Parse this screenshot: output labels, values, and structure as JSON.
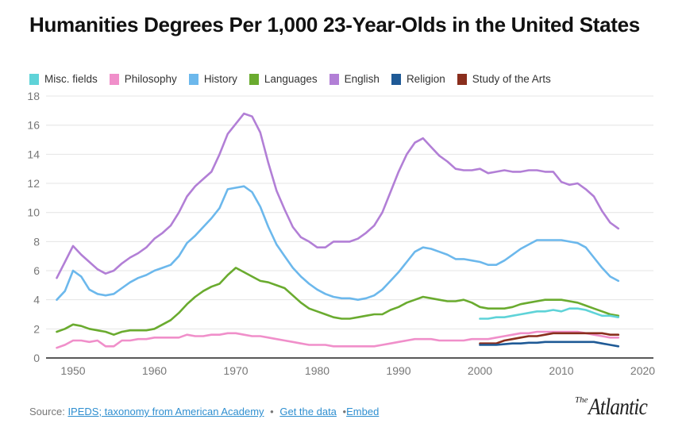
{
  "title": "Humanities Degrees Per 1,000 23-Year-Olds in the United States",
  "footer": {
    "source_label": "Source:",
    "source_link": "IPEDS; taxonomy from American Academy",
    "sep1": "•",
    "get_data": "Get the data",
    "sep2": "•",
    "embed": "Embed"
  },
  "logo": {
    "the": "The",
    "name": "Atlantic"
  },
  "chart_data": {
    "type": "line",
    "title": "Humanities Degrees Per 1,000 23-Year-Olds in the United States",
    "xlabel": "",
    "ylabel": "",
    "xlim": [
      1947,
      2020
    ],
    "ylim": [
      0,
      18
    ],
    "xticks": [
      1950,
      1960,
      1970,
      1980,
      1990,
      2000,
      2010,
      2020
    ],
    "yticks": [
      0,
      2,
      4,
      6,
      8,
      10,
      12,
      14,
      16,
      18
    ],
    "grid": true,
    "legend_position": "top",
    "series": [
      {
        "name": "Misc. fields",
        "color": "#5fd3d8",
        "start_year": 2000,
        "values": [
          2.7,
          2.7,
          2.8,
          2.8,
          2.9,
          3.0,
          3.1,
          3.2,
          3.2,
          3.3,
          3.2,
          3.4,
          3.4,
          3.3,
          3.1,
          2.9,
          2.9,
          2.8
        ]
      },
      {
        "name": "Philosophy",
        "color": "#f08fca",
        "start_year": 1948,
        "values": [
          0.7,
          0.9,
          1.2,
          1.2,
          1.1,
          1.2,
          0.8,
          0.8,
          1.2,
          1.2,
          1.3,
          1.3,
          1.4,
          1.4,
          1.4,
          1.4,
          1.6,
          1.5,
          1.5,
          1.6,
          1.6,
          1.7,
          1.7,
          1.6,
          1.5,
          1.5,
          1.4,
          1.3,
          1.2,
          1.1,
          1.0,
          0.9,
          0.9,
          0.9,
          0.8,
          0.8,
          0.8,
          0.8,
          0.8,
          0.8,
          0.9,
          1.0,
          1.1,
          1.2,
          1.3,
          1.3,
          1.3,
          1.2,
          1.2,
          1.2,
          1.2,
          1.3,
          1.3,
          1.3,
          1.4,
          1.5,
          1.6,
          1.7,
          1.7,
          1.8,
          1.8,
          1.8,
          1.8,
          1.8,
          1.8,
          1.7,
          1.6,
          1.5,
          1.4,
          1.4
        ]
      },
      {
        "name": "History",
        "color": "#6cb8ec",
        "start_year": 1948,
        "values": [
          4.0,
          4.6,
          6.0,
          5.6,
          4.7,
          4.4,
          4.3,
          4.4,
          4.8,
          5.2,
          5.5,
          5.7,
          6.0,
          6.2,
          6.4,
          7.0,
          7.9,
          8.4,
          9.0,
          9.6,
          10.3,
          11.6,
          11.7,
          11.8,
          11.4,
          10.4,
          9.0,
          7.8,
          7.0,
          6.2,
          5.6,
          5.1,
          4.7,
          4.4,
          4.2,
          4.1,
          4.1,
          4.0,
          4.1,
          4.3,
          4.7,
          5.3,
          5.9,
          6.6,
          7.3,
          7.6,
          7.5,
          7.3,
          7.1,
          6.8,
          6.8,
          6.7,
          6.6,
          6.4,
          6.4,
          6.7,
          7.1,
          7.5,
          7.8,
          8.1,
          8.1,
          8.1,
          8.1,
          8.0,
          7.9,
          7.6,
          6.9,
          6.2,
          5.6,
          5.3
        ]
      },
      {
        "name": "Languages",
        "color": "#6aab2f",
        "start_year": 1948,
        "values": [
          1.8,
          2.0,
          2.3,
          2.2,
          2.0,
          1.9,
          1.8,
          1.6,
          1.8,
          1.9,
          1.9,
          1.9,
          2.0,
          2.3,
          2.6,
          3.1,
          3.7,
          4.2,
          4.6,
          4.9,
          5.1,
          5.7,
          6.2,
          5.9,
          5.6,
          5.3,
          5.2,
          5.0,
          4.8,
          4.3,
          3.8,
          3.4,
          3.2,
          3.0,
          2.8,
          2.7,
          2.7,
          2.8,
          2.9,
          3.0,
          3.0,
          3.3,
          3.5,
          3.8,
          4.0,
          4.2,
          4.1,
          4.0,
          3.9,
          3.9,
          4.0,
          3.8,
          3.5,
          3.4,
          3.4,
          3.4,
          3.5,
          3.7,
          3.8,
          3.9,
          4.0,
          4.0,
          4.0,
          3.9,
          3.8,
          3.6,
          3.4,
          3.2,
          3.0,
          2.9
        ]
      },
      {
        "name": "English",
        "color": "#b27fd6",
        "start_year": 1948,
        "values": [
          5.5,
          6.6,
          7.7,
          7.1,
          6.6,
          6.1,
          5.8,
          6.0,
          6.5,
          6.9,
          7.2,
          7.6,
          8.2,
          8.6,
          9.1,
          10.0,
          11.1,
          11.8,
          12.3,
          12.8,
          14.0,
          15.4,
          16.1,
          16.8,
          16.6,
          15.5,
          13.4,
          11.5,
          10.2,
          9.0,
          8.3,
          8.0,
          7.6,
          7.6,
          8.0,
          8.0,
          8.0,
          8.2,
          8.6,
          9.1,
          10.0,
          11.4,
          12.8,
          14.0,
          14.8,
          15.1,
          14.5,
          13.9,
          13.5,
          13.0,
          12.9,
          12.9,
          13.0,
          12.7,
          12.8,
          12.9,
          12.8,
          12.8,
          12.9,
          12.9,
          12.8,
          12.8,
          12.1,
          11.9,
          12.0,
          11.6,
          11.1,
          10.1,
          9.3,
          8.9
        ]
      },
      {
        "name": "Religion",
        "color": "#1f5a96",
        "start_year": 2000,
        "values": [
          0.9,
          0.9,
          0.9,
          0.95,
          1.0,
          1.0,
          1.05,
          1.05,
          1.1,
          1.1,
          1.1,
          1.1,
          1.1,
          1.1,
          1.1,
          1.0,
          0.9,
          0.8
        ]
      },
      {
        "name": "Study of the Arts",
        "color": "#8a2e1d",
        "start_year": 2000,
        "values": [
          1.0,
          1.0,
          1.0,
          1.2,
          1.3,
          1.4,
          1.5,
          1.5,
          1.6,
          1.7,
          1.7,
          1.7,
          1.7,
          1.7,
          1.7,
          1.7,
          1.6,
          1.6
        ]
      }
    ]
  }
}
